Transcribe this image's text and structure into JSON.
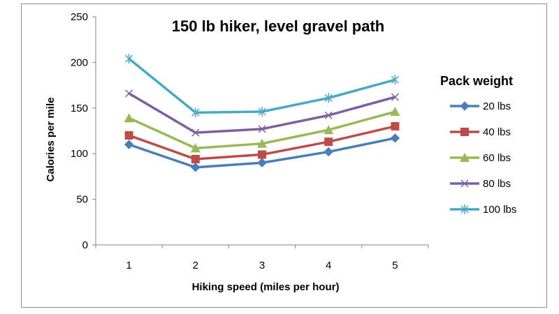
{
  "chart_data": {
    "type": "line",
    "title": "150 lb hiker, level gravel path",
    "xlabel": "Hiking speed (miles per hour)",
    "ylabel": "Calories per mile",
    "x": [
      1,
      2,
      3,
      4,
      5
    ],
    "xticks": [
      "1",
      "2",
      "3",
      "4",
      "5"
    ],
    "ylim": [
      0,
      250
    ],
    "yticks": [
      "0",
      "50",
      "100",
      "150",
      "200",
      "250"
    ],
    "legend_title": "Pack weight",
    "legend_position": "right",
    "grid": false,
    "series": [
      {
        "name": "20 lbs",
        "color": "#4a7ebb",
        "marker": "diamond",
        "values": [
          110,
          85,
          90,
          102,
          117
        ]
      },
      {
        "name": "40 lbs",
        "color": "#be4b48",
        "marker": "square",
        "values": [
          120,
          94,
          99,
          113,
          130
        ]
      },
      {
        "name": "60 lbs",
        "color": "#98b954",
        "marker": "triangle",
        "values": [
          139,
          106,
          111,
          126,
          146
        ]
      },
      {
        "name": "80 lbs",
        "color": "#7d60a0",
        "marker": "x",
        "values": [
          166,
          123,
          127,
          142,
          162
        ]
      },
      {
        "name": "100 lbs",
        "color": "#46aac5",
        "marker": "star",
        "values": [
          204,
          145,
          146,
          161,
          181
        ]
      }
    ]
  }
}
